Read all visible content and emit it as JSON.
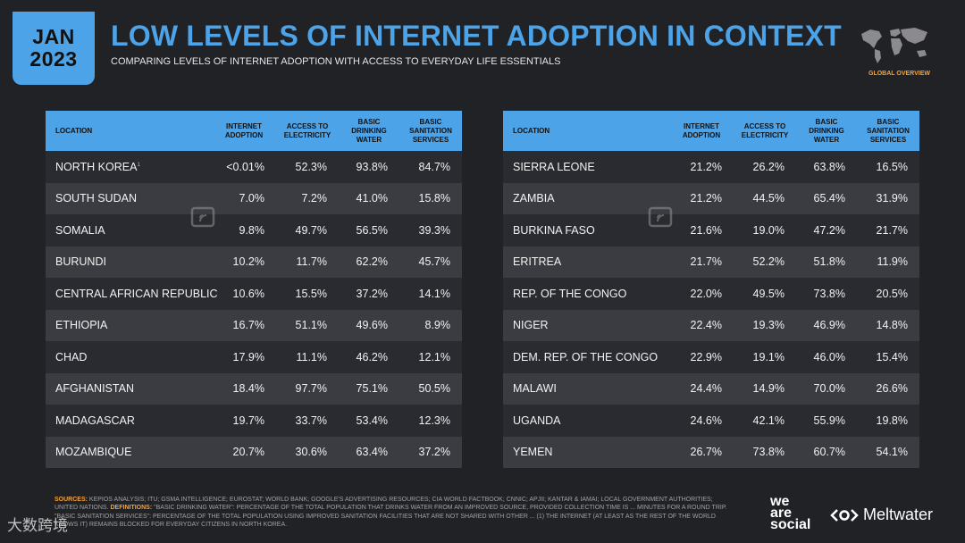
{
  "badge": {
    "month": "JAN",
    "year": "2023"
  },
  "title": "LOW LEVELS OF INTERNET ADOPTION IN CONTEXT",
  "subtitle": "COMPARING LEVELS OF INTERNET ADOPTION WITH ACCESS TO EVERYDAY LIFE ESSENTIALS",
  "global_overview": "GLOBAL OVERVIEW",
  "headers": {
    "location": "LOCATION",
    "internet_1": "INTERNET",
    "internet_2": "ADOPTION",
    "electricity_1": "ACCESS TO",
    "electricity_2": "ELECTRICITY",
    "water_1": "BASIC",
    "water_2": "DRINKING",
    "water_3": "WATER",
    "sanitation_1": "BASIC",
    "sanitation_2": "SANITATION",
    "sanitation_3": "SERVICES"
  },
  "left_rows": [
    {
      "location": "NORTH KOREA",
      "internet": "<0.01%",
      "electricity": "52.3%",
      "water": "93.8%",
      "sanitation": "84.7%"
    },
    {
      "location": "SOUTH SUDAN",
      "internet": "7.0%",
      "electricity": "7.2%",
      "water": "41.0%",
      "sanitation": "15.8%"
    },
    {
      "location": "SOMALIA",
      "internet": "9.8%",
      "electricity": "49.7%",
      "water": "56.5%",
      "sanitation": "39.3%"
    },
    {
      "location": "BURUNDI",
      "internet": "10.2%",
      "electricity": "11.7%",
      "water": "62.2%",
      "sanitation": "45.7%"
    },
    {
      "location": "CENTRAL AFRICAN REPUBLIC",
      "internet": "10.6%",
      "electricity": "15.5%",
      "water": "37.2%",
      "sanitation": "14.1%"
    },
    {
      "location": "ETHIOPIA",
      "internet": "16.7%",
      "electricity": "51.1%",
      "water": "49.6%",
      "sanitation": "8.9%"
    },
    {
      "location": "CHAD",
      "internet": "17.9%",
      "electricity": "11.1%",
      "water": "46.2%",
      "sanitation": "12.1%"
    },
    {
      "location": "AFGHANISTAN",
      "internet": "18.4%",
      "electricity": "97.7%",
      "water": "75.1%",
      "sanitation": "50.5%"
    },
    {
      "location": "MADAGASCAR",
      "internet": "19.7%",
      "electricity": "33.7%",
      "water": "53.4%",
      "sanitation": "12.3%"
    },
    {
      "location": "MOZAMBIQUE",
      "internet": "20.7%",
      "electricity": "30.6%",
      "water": "63.4%",
      "sanitation": "37.2%"
    }
  ],
  "right_rows": [
    {
      "location": "SIERRA LEONE",
      "internet": "21.2%",
      "electricity": "26.2%",
      "water": "63.8%",
      "sanitation": "16.5%"
    },
    {
      "location": "ZAMBIA",
      "internet": "21.2%",
      "electricity": "44.5%",
      "water": "65.4%",
      "sanitation": "31.9%"
    },
    {
      "location": "BURKINA FASO",
      "internet": "21.6%",
      "electricity": "19.0%",
      "water": "47.2%",
      "sanitation": "21.7%"
    },
    {
      "location": "ERITREA",
      "internet": "21.7%",
      "electricity": "52.2%",
      "water": "51.8%",
      "sanitation": "11.9%"
    },
    {
      "location": "REP. OF THE CONGO",
      "internet": "22.0%",
      "electricity": "49.5%",
      "water": "73.8%",
      "sanitation": "20.5%"
    },
    {
      "location": "NIGER",
      "internet": "22.4%",
      "electricity": "19.3%",
      "water": "46.9%",
      "sanitation": "14.8%"
    },
    {
      "location": "DEM. REP. OF THE CONGO",
      "internet": "22.9%",
      "electricity": "19.1%",
      "water": "46.0%",
      "sanitation": "15.4%"
    },
    {
      "location": "MALAWI",
      "internet": "24.4%",
      "electricity": "14.9%",
      "water": "70.0%",
      "sanitation": "26.6%"
    },
    {
      "location": "UGANDA",
      "internet": "24.6%",
      "electricity": "42.1%",
      "water": "55.9%",
      "sanitation": "19.8%"
    },
    {
      "location": "YEMEN",
      "internet": "26.7%",
      "electricity": "73.8%",
      "water": "60.7%",
      "sanitation": "54.1%"
    }
  ],
  "footnote": {
    "sources_label": "SOURCES:",
    "sources_text": " KEPIOS ANALYSIS; ITU; GSMA INTELLIGENCE; EUROSTAT; WORLD BANK; GOOGLE'S ADVERTISING RESOURCES; CIA WORLD FACTBOOK; CNNIC; APJII; KANTAR & IAMAI; LOCAL GOVERNMENT AUTHORITIES; UNITED NATIONS.",
    "definitions_label": "DEFINITIONS:",
    "definitions_text": " \"BASIC DRINKING WATER\": PERCENTAGE OF THE TOTAL POPULATION THAT DRINKS WATER FROM AN IMPROVED SOURCE, PROVIDED COLLECTION TIME IS ... MINUTES FOR A ROUND TRIP. \"BASIC SANITATION SERVICES\": PERCENTAGE OF THE TOTAL POPULATION USING IMPROVED SANITATION FACILITIES THAT ARE NOT SHARED WITH OTHER ...",
    "note_text": "(1) THE INTERNET (AT LEAST AS THE REST OF THE WORLD KNOWS IT) REMAINS BLOCKED FOR EVERYDAY CITIZENS IN NORTH KOREA."
  },
  "brand": {
    "we": "we",
    "are": "are",
    "social": "social",
    "meltwater": "Meltwater"
  },
  "corner_logo": "大数跨境"
}
